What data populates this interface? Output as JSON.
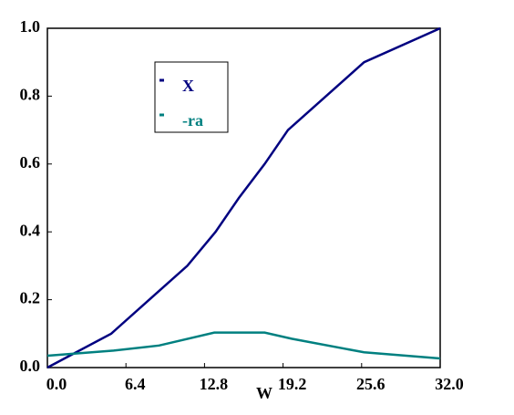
{
  "chart_data": {
    "type": "line",
    "x_label": "W",
    "xlim": [
      0,
      32
    ],
    "ylim": [
      0,
      1
    ],
    "xticks": [
      {
        "value": 0,
        "label": "0.0"
      },
      6.4,
      12.8,
      19.2,
      25.6,
      {
        "value": 32,
        "label": "32.0"
      }
    ],
    "yticks": [
      {
        "value": 0,
        "label": "0.0"
      },
      0.2,
      0.4,
      0.6,
      0.8,
      {
        "value": 1,
        "label": "1.0"
      }
    ],
    "legend_loc": "upper left",
    "series": [
      {
        "name": "X",
        "color": "#000080",
        "x": [
          0,
          5.2,
          8.3,
          11.4,
          13.7,
          15.6,
          17.7,
          19.6,
          25.8,
          32
        ],
        "values": [
          0,
          0.1,
          0.2,
          0.3,
          0.4,
          0.5,
          0.6,
          0.7,
          0.9,
          1.0
        ]
      },
      {
        "name": "-ra",
        "color": "#008080",
        "x": [
          0,
          5.4,
          9.1,
          13.6,
          17.7,
          19.9,
          25.8,
          32
        ],
        "values": [
          0.035,
          0.05,
          0.065,
          0.103,
          0.103,
          0.085,
          0.045,
          0.027
        ]
      }
    ]
  }
}
